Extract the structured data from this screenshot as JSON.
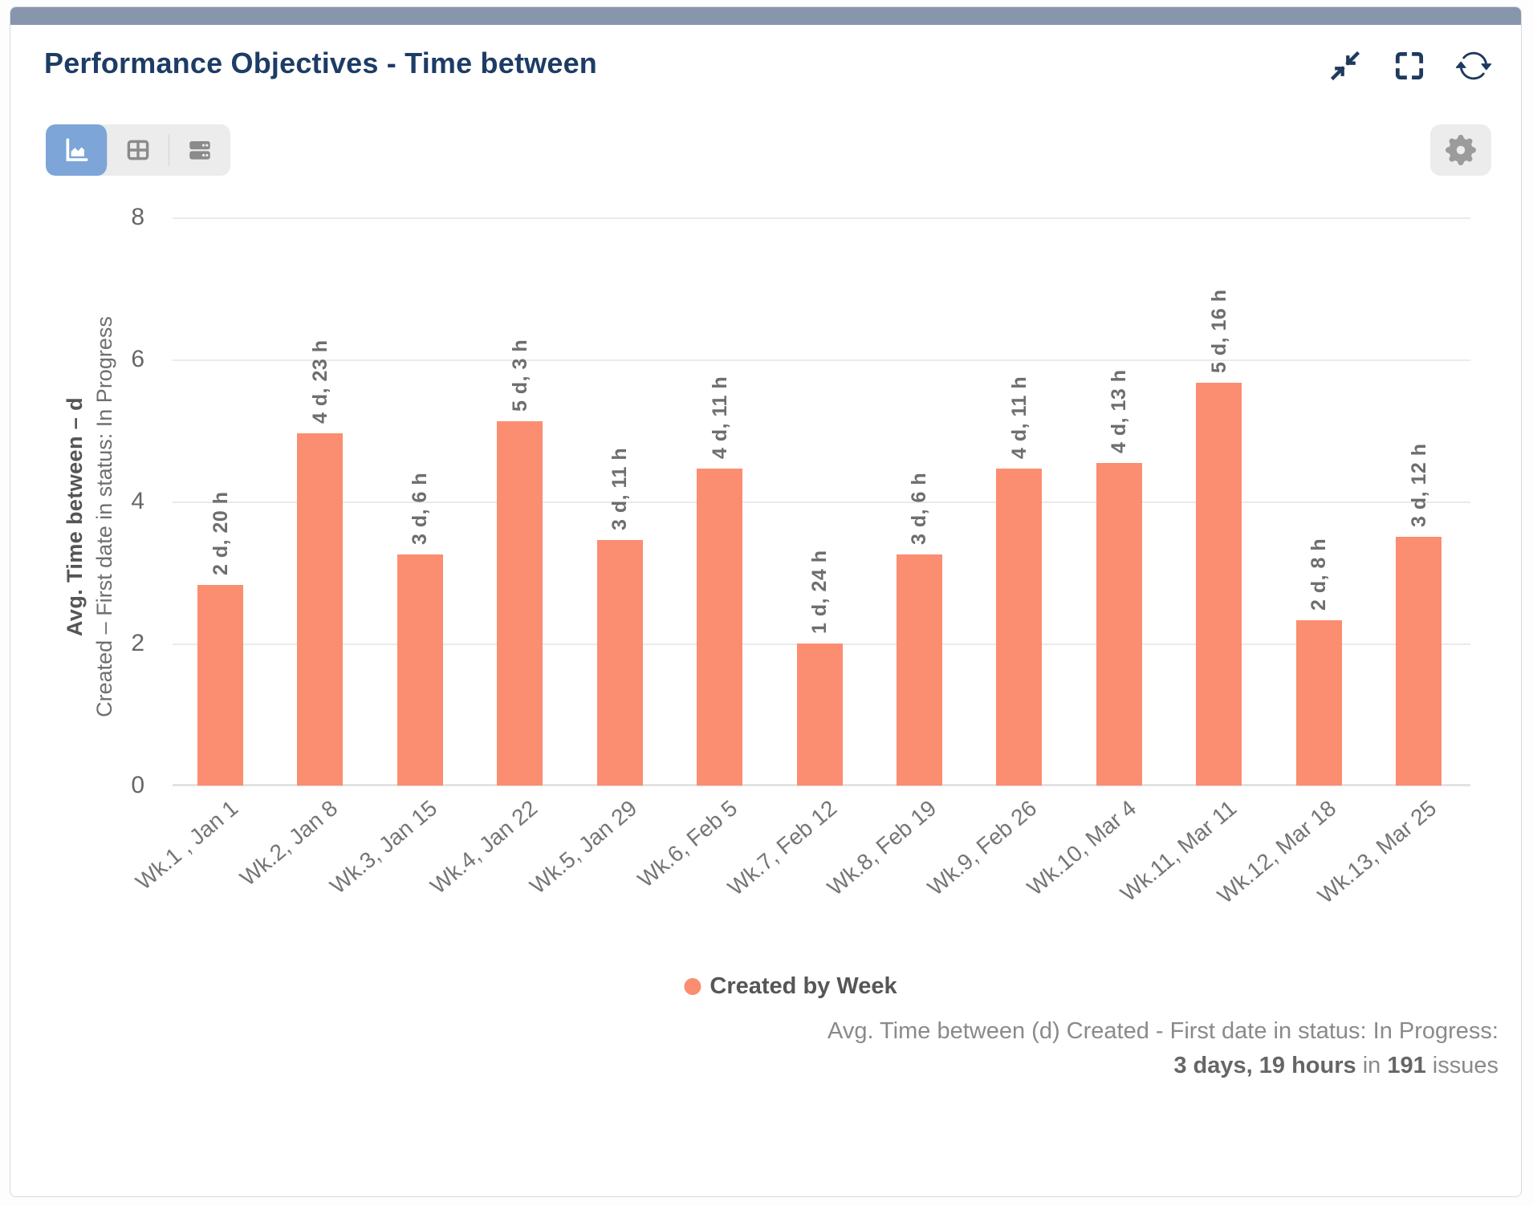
{
  "header": {
    "title": "Performance Objectives - Time between",
    "icons": [
      "minimize-icon",
      "fullscreen-icon",
      "refresh-icon"
    ]
  },
  "toolbar": {
    "view_buttons": [
      "chart-view",
      "table-view",
      "rows-view"
    ],
    "active_view": "chart-view",
    "settings_icon": "gear-icon",
    "active_color": "#7da5d8"
  },
  "accent_color": "#8796ac",
  "chart_data": {
    "type": "bar",
    "categories": [
      "Wk.1 , Jan 1",
      "Wk.2, Jan 8",
      "Wk.3, Jan 15",
      "Wk.4, Jan 22",
      "Wk.5, Jan 29",
      "Wk.6, Feb 5",
      "Wk.7, Feb 12",
      "Wk.8, Feb 19",
      "Wk.9, Feb 26",
      "Wk.10, Mar 4",
      "Wk.11, Mar 11",
      "Wk.12, Mar 18",
      "Wk.13, Mar 25"
    ],
    "series": [
      {
        "name": "Created by Week",
        "values": [
          2.83,
          4.96,
          3.25,
          5.13,
          3.46,
          4.46,
          2.0,
          3.25,
          4.46,
          4.54,
          5.67,
          2.33,
          3.5
        ],
        "labels": [
          "2 d, 20 h",
          "4 d, 23 h",
          "3 d, 6 h",
          "5 d, 3 h",
          "3 d, 11 h",
          "4 d, 11 h",
          "1 d, 24 h",
          "3 d, 6 h",
          "4 d, 11 h",
          "4 d, 13 h",
          "5 d, 16 h",
          "2 d, 8 h",
          "3 d, 12 h"
        ]
      }
    ],
    "bar_color": "#FB8D71",
    "ylabel_bold": "Avg. Time between – d",
    "ylabel_sub": "Created – First date in status: In Progress",
    "yticks": [
      0,
      2,
      4,
      6,
      8
    ],
    "ylim": [
      0,
      8
    ],
    "grid": true,
    "legend_position": "bottom"
  },
  "legend": {
    "label": "Created by Week",
    "color": "#FB8D71"
  },
  "footer": {
    "line1": "Avg. Time between (d) Created - First date in status: In Progress:",
    "bold1": "3 days, 19 hours",
    "mid": " in ",
    "bold2": "191",
    "end": " issues"
  }
}
